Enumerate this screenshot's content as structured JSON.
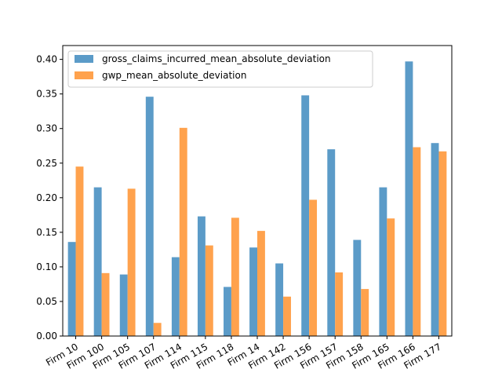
{
  "chart_data": {
    "type": "bar",
    "title": "",
    "xlabel": "",
    "ylabel": "",
    "ylim": [
      0,
      0.42
    ],
    "yticks": [
      0.0,
      0.05,
      0.1,
      0.15,
      0.2,
      0.25,
      0.3,
      0.35,
      0.4
    ],
    "ytick_labels": [
      "0.00",
      "0.05",
      "0.10",
      "0.15",
      "0.20",
      "0.25",
      "0.30",
      "0.35",
      "0.40"
    ],
    "grid": false,
    "legend_position": "top-left",
    "categories": [
      "Firm 10",
      "Firm 100",
      "Firm 105",
      "Firm 107",
      "Firm 114",
      "Firm 115",
      "Firm 118",
      "Firm 14",
      "Firm 142",
      "Firm 156",
      "Firm 157",
      "Firm 158",
      "Firm 165",
      "Firm 166",
      "Firm 177"
    ],
    "series": [
      {
        "name": "gross_claims_incurred_mean_absolute_deviation",
        "color": "#5b9bc8",
        "values": [
          0.136,
          0.215,
          0.089,
          0.346,
          0.114,
          0.173,
          0.071,
          0.128,
          0.105,
          0.348,
          0.27,
          0.139,
          0.215,
          0.397,
          0.279
        ]
      },
      {
        "name": "gwp_mean_absolute_deviation",
        "color": "#ffa24d",
        "values": [
          0.245,
          0.091,
          0.213,
          0.019,
          0.301,
          0.131,
          0.171,
          0.152,
          0.057,
          0.197,
          0.092,
          0.068,
          0.17,
          0.273,
          0.267
        ]
      }
    ]
  }
}
